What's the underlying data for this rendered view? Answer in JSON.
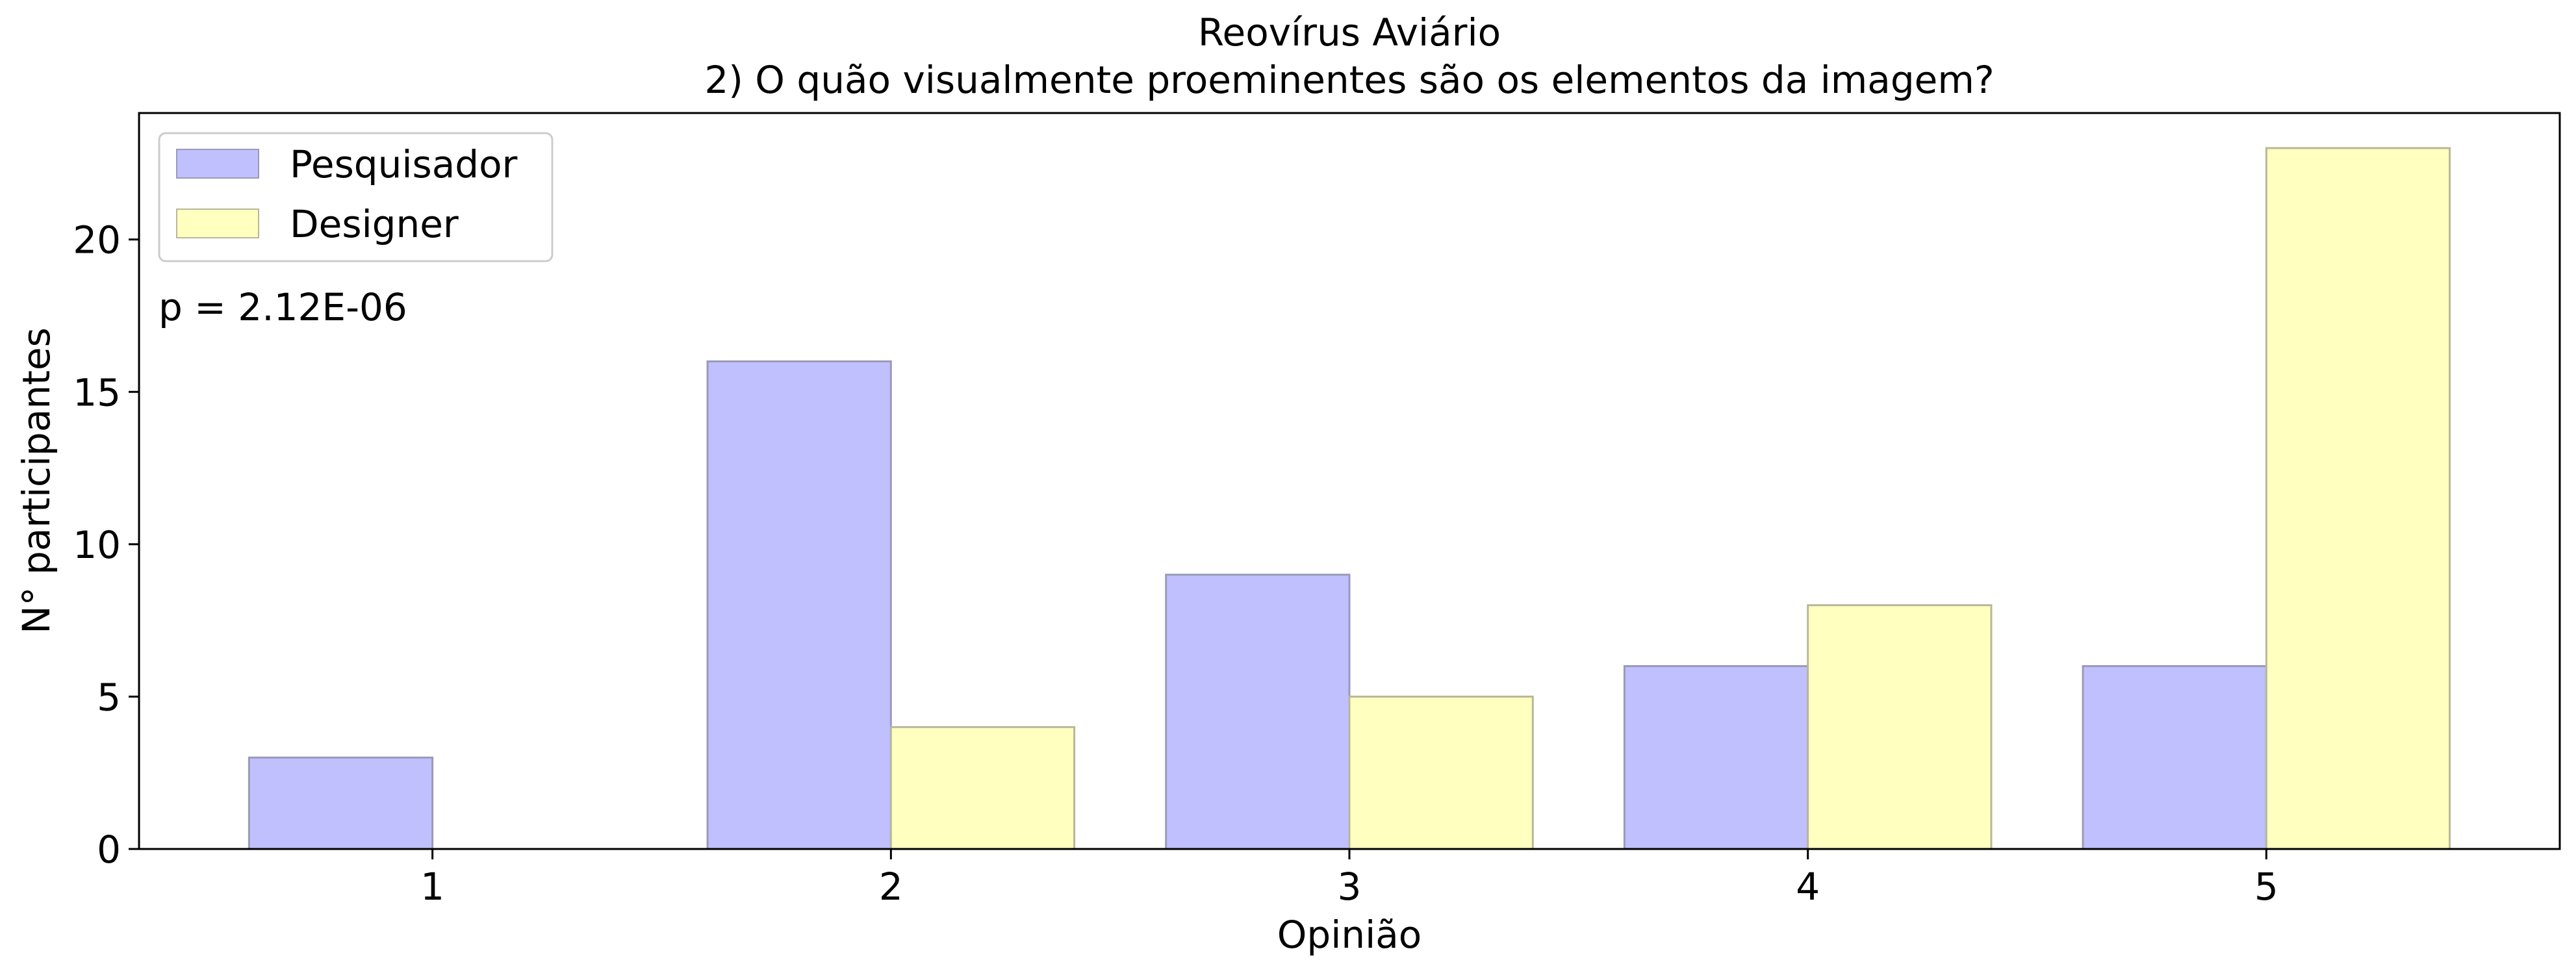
{
  "chart_data": {
    "type": "bar",
    "title": "Reovírus Aviário",
    "subtitle": "2) O quão visualmente proeminentes são os elementos da imagem?",
    "xlabel": "Opinião",
    "ylabel": "N° participantes",
    "categories": [
      "1",
      "2",
      "3",
      "4",
      "5"
    ],
    "series": [
      {
        "name": "Pesquisador",
        "values": [
          3,
          16,
          9,
          6,
          6
        ],
        "color": "#c0c0ff",
        "edge_color": "#9a9ab8"
      },
      {
        "name": "Designer",
        "values": [
          0,
          4,
          5,
          8,
          23
        ],
        "color": "#ffffc0",
        "edge_color": "#b8b89a"
      }
    ],
    "ylim": [
      0,
      24.15
    ],
    "yticks": [
      0,
      5,
      10,
      15,
      20
    ],
    "grid": false,
    "legend_position": "top-left",
    "annotation": "p = 2.12E-06"
  }
}
